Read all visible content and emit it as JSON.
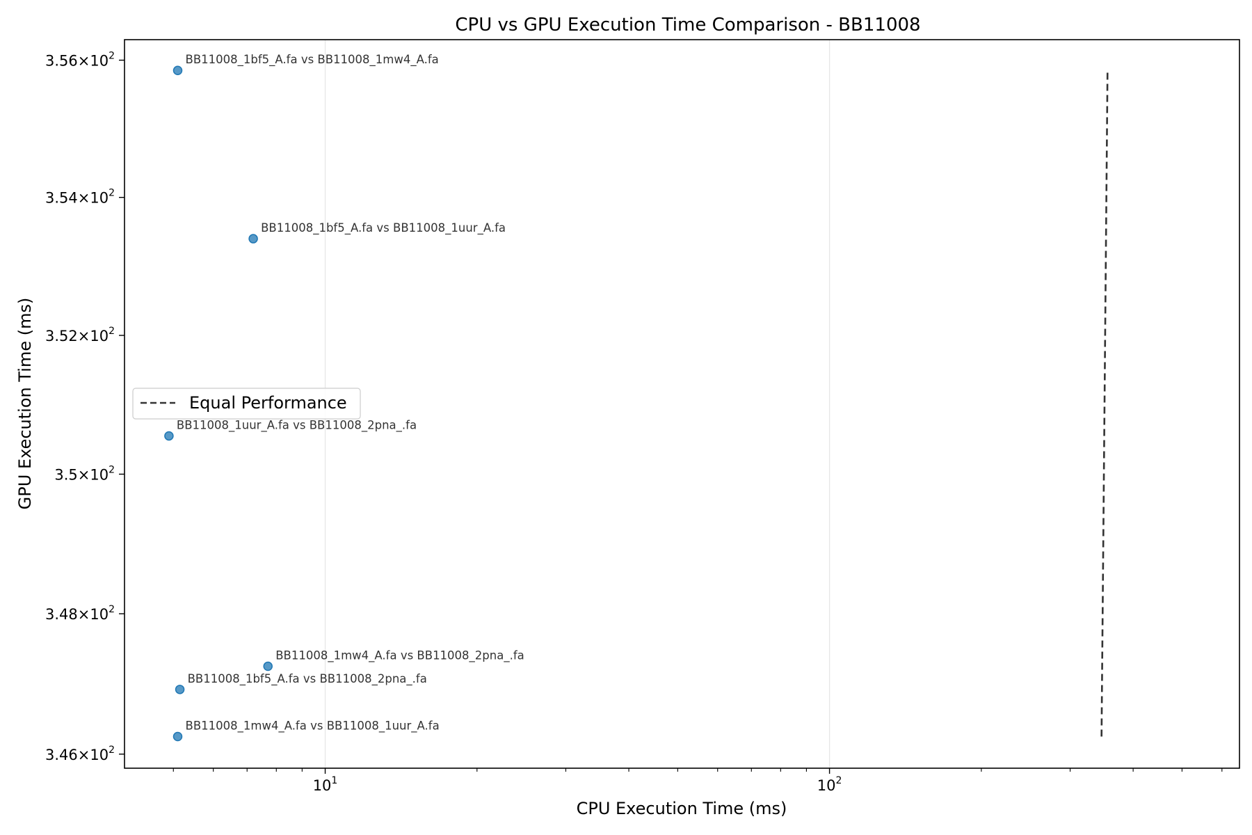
{
  "chart_data": {
    "type": "scatter",
    "title": "CPU vs GPU Execution Time Comparison - BB11008",
    "xlabel": "CPU Execution Time (ms)",
    "ylabel": "GPU Execution Time (ms)",
    "xscale": "log",
    "yscale": "log",
    "xlim": [
      4.0,
      650
    ],
    "ylim": [
      345.8,
      356.3
    ],
    "grid": "x-major",
    "legend_position": "center-left",
    "colors": {
      "points": "#1f77b4",
      "reference_line": "#333333",
      "grid": "#e6e6e6",
      "axes": "#000000"
    },
    "x_ticks": [
      {
        "value": 10,
        "base": "10",
        "exp": "1"
      },
      {
        "value": 100,
        "base": "10",
        "exp": "2"
      }
    ],
    "y_ticks": [
      {
        "value": 346,
        "mant": "3.46",
        "exp": "2"
      },
      {
        "value": 348,
        "mant": "3.48",
        "exp": "2"
      },
      {
        "value": 350,
        "mant": "3.5",
        "exp": "2"
      },
      {
        "value": 352,
        "mant": "3.52",
        "exp": "2"
      },
      {
        "value": 354,
        "mant": "3.54",
        "exp": "2"
      },
      {
        "value": 356,
        "mant": "3.56",
        "exp": "2"
      }
    ],
    "points": [
      {
        "x": 5.1,
        "y": 355.85,
        "label": "BB11008_1bf5_A.fa vs BB11008_1mw4_A.fa"
      },
      {
        "x": 7.2,
        "y": 353.4,
        "label": "BB11008_1bf5_A.fa vs BB11008_1uur_A.fa"
      },
      {
        "x": 4.9,
        "y": 350.55,
        "label": "BB11008_1uur_A.fa vs BB11008_2pna_.fa"
      },
      {
        "x": 7.7,
        "y": 347.25,
        "label": "BB11008_1mw4_A.fa vs BB11008_2pna_.fa"
      },
      {
        "x": 5.15,
        "y": 346.92,
        "label": "BB11008_1bf5_A.fa vs BB11008_2pna_.fa"
      },
      {
        "x": 5.1,
        "y": 346.25,
        "label": "BB11008_1mw4_A.fa vs BB11008_1uur_A.fa"
      }
    ],
    "reference_line": {
      "name": "Equal Performance",
      "x": [
        346.25,
        355.85
      ],
      "y": [
        346.25,
        355.85
      ]
    }
  }
}
